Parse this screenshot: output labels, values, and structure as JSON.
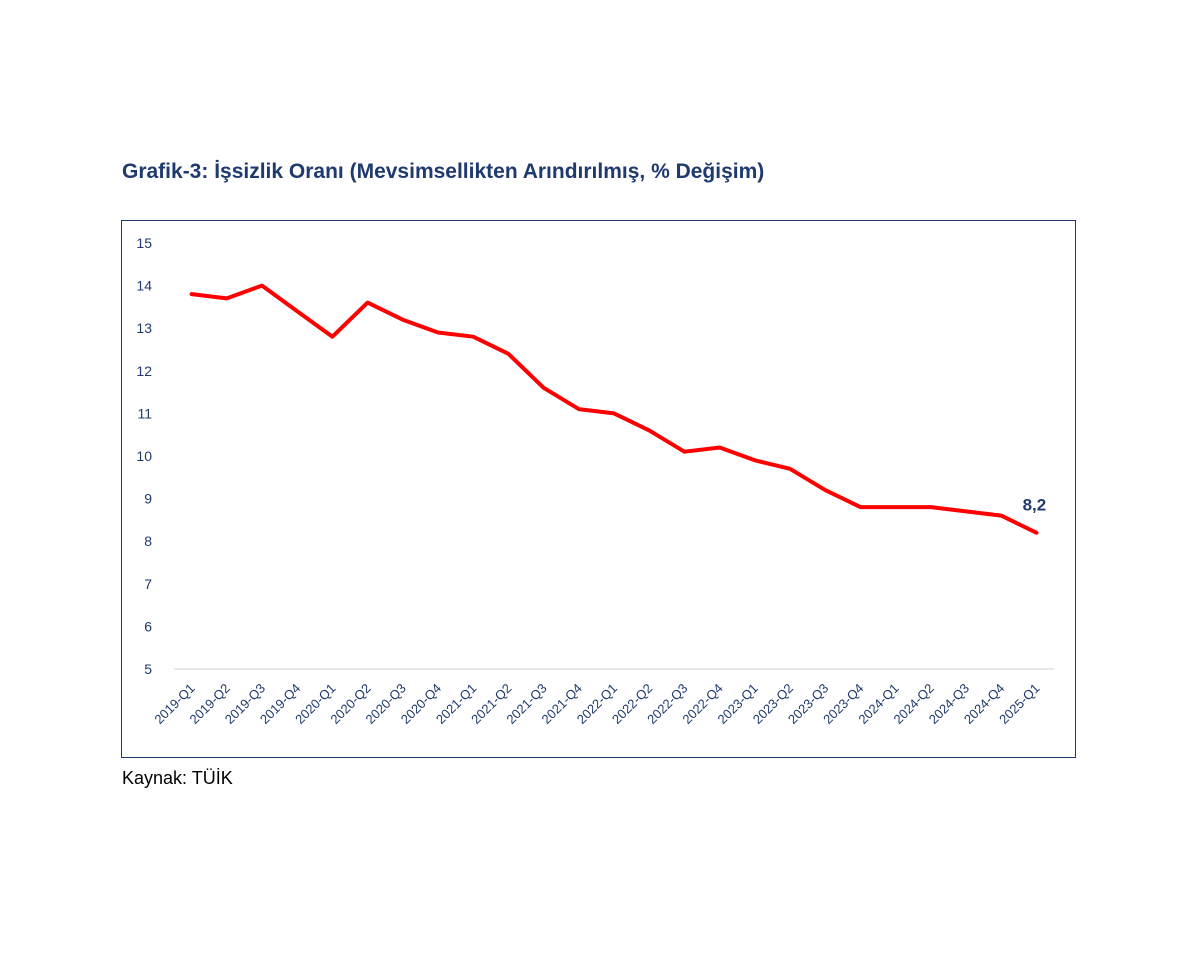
{
  "title": "Grafik-3: İşsizlik Oranı (Mevsimsellikten Arındırılmış, % Değişim)",
  "source": "Kaynak: TÜİK",
  "colors": {
    "line": "#ff0000",
    "axis_text": "#1f3a6e",
    "frame": "#1f3a6e",
    "grid": "#d9d9d9"
  },
  "chart_data": {
    "type": "line",
    "title": "Grafik-3: İşsizlik Oranı (Mevsimsellikten Arındırılmış, % Değişim)",
    "xlabel": "",
    "ylabel": "",
    "ylim": [
      5,
      15
    ],
    "yticks": [
      15,
      14,
      13,
      12,
      11,
      10,
      9,
      8,
      7,
      6,
      5
    ],
    "categories": [
      "2019-Q1",
      "2019-Q2",
      "2019-Q3",
      "2019-Q4",
      "2020-Q1",
      "2020-Q2",
      "2020-Q3",
      "2020-Q4",
      "2021-Q1",
      "2021-Q2",
      "2021-Q3",
      "2021-Q4",
      "2022-Q1",
      "2022-Q2",
      "2022-Q3",
      "2022-Q4",
      "2023-Q1",
      "2023-Q2",
      "2023-Q3",
      "2023-Q4",
      "2024-Q1",
      "2024-Q2",
      "2024-Q3",
      "2024-Q4",
      "2025-Q1"
    ],
    "series": [
      {
        "name": "İşsizlik Oranı",
        "values": [
          13.8,
          13.7,
          14.0,
          13.4,
          12.8,
          13.6,
          13.2,
          12.9,
          12.8,
          12.4,
          11.6,
          11.1,
          11.0,
          10.6,
          10.1,
          10.2,
          9.9,
          9.7,
          9.2,
          8.8,
          8.8,
          8.8,
          8.7,
          8.6,
          8.2
        ]
      }
    ],
    "data_label": {
      "text": "8,2",
      "index": 24
    },
    "grid": false,
    "legend": "none"
  }
}
